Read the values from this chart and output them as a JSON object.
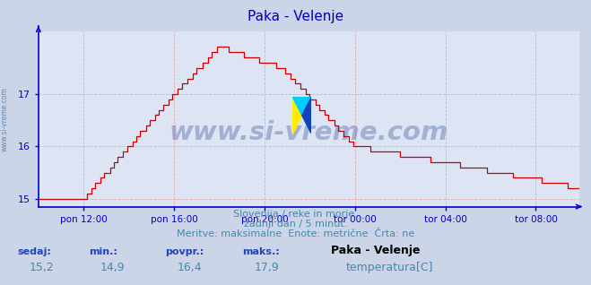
{
  "title": "Paka - Velenje",
  "title_color": "#0000bb",
  "bg_color": "#ccd4e8",
  "plot_bg_color": "#dde4f4",
  "line_color": "#cc0000",
  "grid_color": "#e8aaaa",
  "axis_color": "#0000cc",
  "text_color": "#4488aa",
  "ytick_color": "#4488aa",
  "ylim": [
    14.85,
    18.2
  ],
  "yticks": [
    15,
    16,
    17
  ],
  "xlabel_ticks": [
    "pon 12:00",
    "pon 16:00",
    "pon 20:00",
    "tor 00:00",
    "tor 04:00",
    "tor 08:00"
  ],
  "watermark": "www.si-vreme.com",
  "subtitle1": "Slovenija / reke in morje.",
  "subtitle2": "zadnji dan / 5 minut.",
  "subtitle3": "Meritve: maksimalne  Enote: metrične  Črta: ne",
  "footer_labels": [
    "sedaj:",
    "min.:",
    "povpr.:",
    "maks.:"
  ],
  "footer_values": [
    "15,2",
    "14,9",
    "16,4",
    "17,9"
  ],
  "footer_series_name": "Paka - Velenje",
  "footer_series_label": "temperatura[C]",
  "side_label": "www.si-vreme.com"
}
